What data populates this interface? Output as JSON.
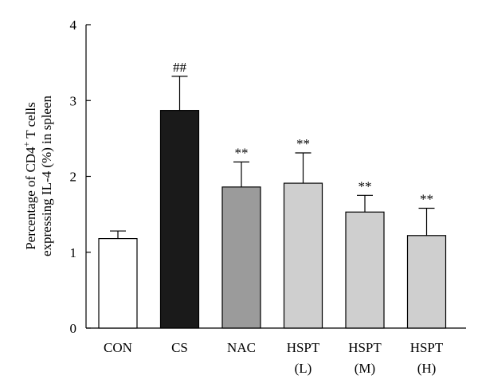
{
  "chart_data": {
    "type": "bar",
    "title": "",
    "xlabel": "",
    "ylabel_line1": "Percentage of CD4",
    "ylabel_sup": "+",
    "ylabel_line1_rest": " T cells",
    "ylabel_line2": "expressing IL-4 (%) in spleen",
    "ylim": [
      0,
      4
    ],
    "yticks": [
      "0",
      "1",
      "2",
      "3",
      "4"
    ],
    "categories": [
      {
        "line1": "CON",
        "line2": ""
      },
      {
        "line1": "CS",
        "line2": ""
      },
      {
        "line1": "NAC",
        "line2": ""
      },
      {
        "line1": "HSPT",
        "line2": "(L)"
      },
      {
        "line1": "HSPT",
        "line2": "(M)"
      },
      {
        "line1": "HSPT",
        "line2": "(H)"
      }
    ],
    "values": [
      1.18,
      2.87,
      1.86,
      1.91,
      1.53,
      1.22
    ],
    "errors": [
      0.1,
      0.45,
      0.33,
      0.4,
      0.22,
      0.36
    ],
    "annotations": [
      "",
      "##",
      "**",
      "**",
      "**",
      "**"
    ],
    "colors": [
      "#ffffff",
      "#1a1a1a",
      "#9b9b9b",
      "#cfcfcf",
      "#cfcfcf",
      "#cfcfcf"
    ]
  }
}
